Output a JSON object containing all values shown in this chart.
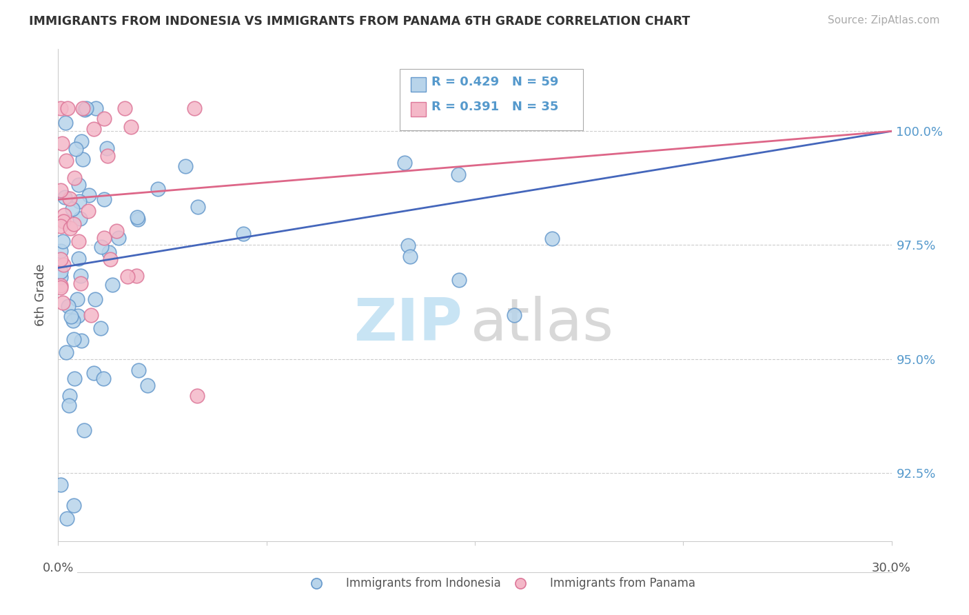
{
  "title": "IMMIGRANTS FROM INDONESIA VS IMMIGRANTS FROM PANAMA 6TH GRADE CORRELATION CHART",
  "source": "Source: ZipAtlas.com",
  "ylabel": "6th Grade",
  "y_ticks": [
    92.5,
    95.0,
    97.5,
    100.0
  ],
  "y_tick_labels": [
    "92.5%",
    "95.0%",
    "97.5%",
    "100.0%"
  ],
  "xlim": [
    0.0,
    30.0
  ],
  "ylim": [
    91.0,
    101.5
  ],
  "legend_r1": "R = 0.429",
  "legend_n1": "N = 59",
  "legend_r2": "R = 0.391",
  "legend_n2": "N = 35",
  "color_indonesia_face": "#b8d4ea",
  "color_indonesia_edge": "#6699cc",
  "color_panama_face": "#f4b8c8",
  "color_panama_edge": "#dd7799",
  "color_line_indonesia": "#4466bb",
  "color_line_panama": "#dd6688",
  "color_ytick": "#5599cc",
  "watermark_zip": "#c8e4f4",
  "watermark_atlas": "#d8d8d8"
}
